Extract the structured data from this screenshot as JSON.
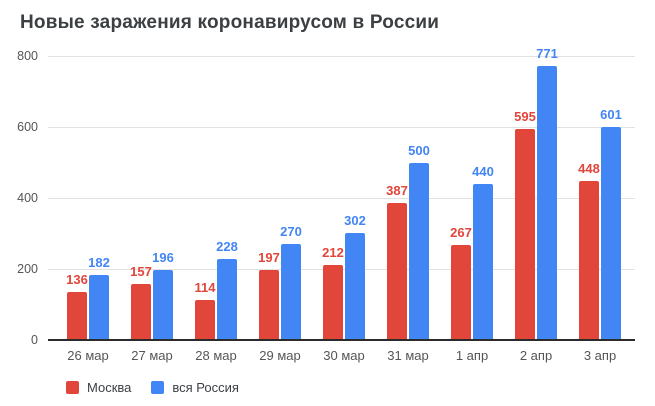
{
  "title": "Новые заражения коронавирусом в России",
  "legend": {
    "items": [
      {
        "label": "Москва",
        "color": "#e2453a"
      },
      {
        "label": "вся Россия",
        "color": "#4285f4"
      }
    ]
  },
  "colors": {
    "moscow": "#e2453a",
    "russia": "#4285f4",
    "title_text": "#3c4043",
    "axis_text": "#555555",
    "gridline": "#e2e2e2",
    "baseline": "#2b2b2b"
  },
  "chart_data": {
    "type": "bar",
    "title": "Новые заражения коронавирусом в России",
    "categories": [
      "26 мар",
      "27 мар",
      "28 мар",
      "29 мар",
      "30 мар",
      "31 мар",
      "1 апр",
      "2 апр",
      "3 апр"
    ],
    "series": [
      {
        "name": "Москва",
        "color": "#e2453a",
        "values": [
          136,
          157,
          114,
          197,
          212,
          387,
          267,
          595,
          448
        ]
      },
      {
        "name": "вся Россия",
        "color": "#4285f4",
        "values": [
          182,
          196,
          228,
          270,
          302,
          500,
          440,
          771,
          601
        ]
      }
    ],
    "xlabel": "",
    "ylabel": "",
    "ylim": [
      0,
      800
    ],
    "yticks": [
      0,
      200,
      400,
      600,
      800
    ],
    "grid": true,
    "data_labels": true,
    "legend_position": "bottom-left"
  }
}
